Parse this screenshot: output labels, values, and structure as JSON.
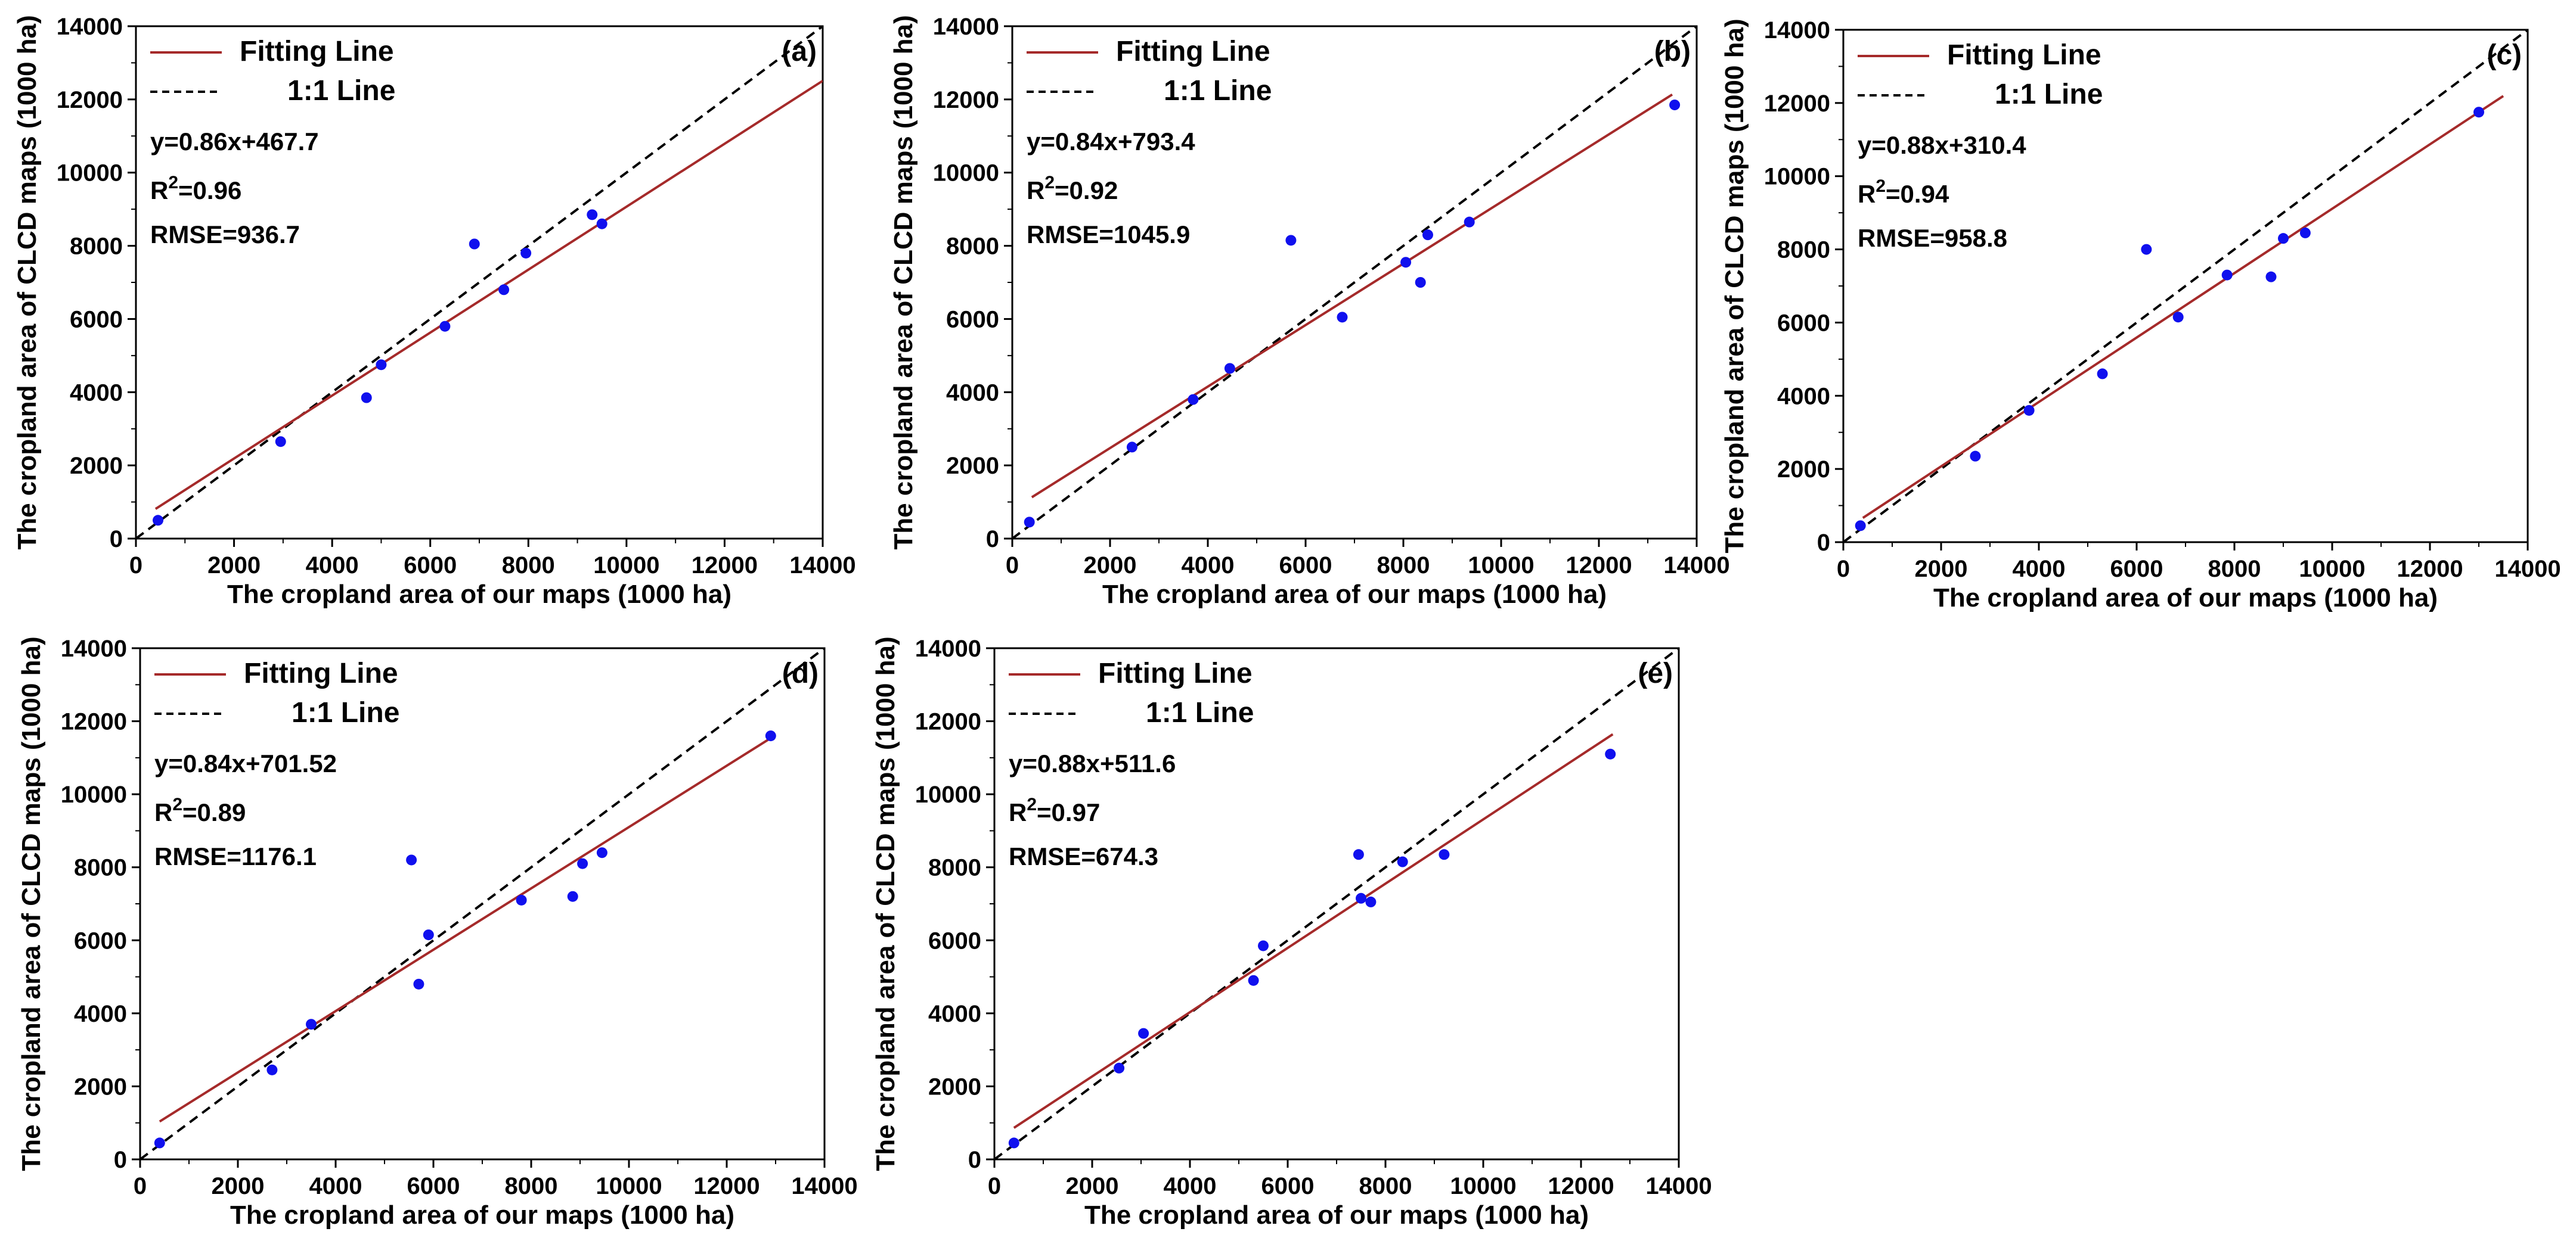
{
  "figure": {
    "colors": {
      "fit": "#a52a2a",
      "ref": "#000000",
      "point": "#1010ee",
      "axis": "#000000"
    }
  },
  "chart_data": [
    {
      "type": "scatter",
      "panel_label": "(a)",
      "xlabel": "The cropland area of our maps (1000 ha)",
      "ylabel": "The cropland area of CLCD maps (1000 ha)",
      "xlim": [
        0,
        14000
      ],
      "ylim": [
        0,
        14000
      ],
      "xticks": [
        "0",
        "2000",
        "4000",
        "6000",
        "8000",
        "10000",
        "12000",
        "14000"
      ],
      "yticks": [
        "0",
        "2000",
        "4000",
        "6000",
        "8000",
        "10000",
        "12000",
        "14000"
      ],
      "legend": {
        "fit_label": "Fitting Line",
        "ref_label": "1:1 Line"
      },
      "equation": "y=0.86x+467.7",
      "r2_label": "R",
      "r2_sup": "2",
      "r2_value": "=0.96",
      "rmse": "RMSE=936.7",
      "fit": {
        "slope": 0.86,
        "intercept": 467.7,
        "x_range": [
          400,
          14000
        ]
      },
      "reference": {
        "x_range": [
          0,
          14000
        ]
      },
      "points": [
        {
          "x": 450,
          "y": 500
        },
        {
          "x": 2950,
          "y": 2650
        },
        {
          "x": 4700,
          "y": 3850
        },
        {
          "x": 5000,
          "y": 4750
        },
        {
          "x": 6300,
          "y": 5800
        },
        {
          "x": 6900,
          "y": 8050
        },
        {
          "x": 7500,
          "y": 6800
        },
        {
          "x": 7950,
          "y": 7800
        },
        {
          "x": 9300,
          "y": 8850
        },
        {
          "x": 9500,
          "y": 8600
        }
      ]
    },
    {
      "type": "scatter",
      "panel_label": "(b)",
      "xlabel": "The cropland area of our maps (1000 ha)",
      "ylabel": "The cropland area of CLCD maps (1000 ha)",
      "xlim": [
        0,
        14000
      ],
      "ylim": [
        0,
        14000
      ],
      "xticks": [
        "0",
        "2000",
        "4000",
        "6000",
        "8000",
        "10000",
        "12000",
        "14000"
      ],
      "yticks": [
        "0",
        "2000",
        "4000",
        "6000",
        "8000",
        "10000",
        "12000",
        "14000"
      ],
      "legend": {
        "fit_label": "Fitting Line",
        "ref_label": "1:1 Line"
      },
      "equation": "y=0.84x+793.4",
      "r2_label": "R",
      "r2_sup": "2",
      "r2_value": "=0.92",
      "rmse": "RMSE=1045.9",
      "fit": {
        "slope": 0.84,
        "intercept": 793.4,
        "x_range": [
          400,
          13500
        ]
      },
      "reference": {
        "x_range": [
          0,
          14000
        ]
      },
      "points": [
        {
          "x": 350,
          "y": 450
        },
        {
          "x": 2450,
          "y": 2500
        },
        {
          "x": 3700,
          "y": 3800
        },
        {
          "x": 4450,
          "y": 4650
        },
        {
          "x": 5700,
          "y": 8150
        },
        {
          "x": 6750,
          "y": 6050
        },
        {
          "x": 8050,
          "y": 7550
        },
        {
          "x": 8350,
          "y": 7000
        },
        {
          "x": 8500,
          "y": 8300
        },
        {
          "x": 9350,
          "y": 8650
        },
        {
          "x": 13550,
          "y": 11850
        }
      ]
    },
    {
      "type": "scatter",
      "panel_label": "(c)",
      "xlabel": "The cropland area of our maps (1000 ha)",
      "ylabel": "The cropland area of CLCD maps (1000 ha)",
      "xlim": [
        0,
        14000
      ],
      "ylim": [
        0,
        14000
      ],
      "xticks": [
        "0",
        "2000",
        "4000",
        "6000",
        "8000",
        "10000",
        "12000",
        "14000"
      ],
      "yticks": [
        "0",
        "2000",
        "4000",
        "6000",
        "8000",
        "10000",
        "12000",
        "14000"
      ],
      "legend": {
        "fit_label": "Fitting Line",
        "ref_label": "1:1 Line"
      },
      "equation": "y=0.88x+310.4",
      "r2_label": "R",
      "r2_sup": "2",
      "r2_value": "=0.94",
      "rmse": "RMSE=958.8",
      "fit": {
        "slope": 0.88,
        "intercept": 310.4,
        "x_range": [
          400,
          13500
        ]
      },
      "reference": {
        "x_range": [
          0,
          14000
        ]
      },
      "points": [
        {
          "x": 350,
          "y": 450
        },
        {
          "x": 2700,
          "y": 2350
        },
        {
          "x": 3800,
          "y": 3600
        },
        {
          "x": 5300,
          "y": 4600
        },
        {
          "x": 6200,
          "y": 8000
        },
        {
          "x": 6850,
          "y": 6150
        },
        {
          "x": 7850,
          "y": 7300
        },
        {
          "x": 8750,
          "y": 7250
        },
        {
          "x": 9000,
          "y": 8300
        },
        {
          "x": 9450,
          "y": 8450
        },
        {
          "x": 13000,
          "y": 11750
        }
      ]
    },
    {
      "type": "scatter",
      "panel_label": "(d)",
      "xlabel": "The cropland area of our maps (1000 ha)",
      "ylabel": "The cropland area of CLCD maps (1000 ha)",
      "xlim": [
        0,
        14000
      ],
      "ylim": [
        0,
        14000
      ],
      "xticks": [
        "0",
        "2000",
        "4000",
        "6000",
        "8000",
        "10000",
        "12000",
        "14000"
      ],
      "yticks": [
        "0",
        "2000",
        "4000",
        "6000",
        "8000",
        "10000",
        "12000",
        "14000"
      ],
      "legend": {
        "fit_label": "Fitting Line",
        "ref_label": "1:1 Line"
      },
      "equation": "y=0.84x+701.52",
      "r2_label": "R",
      "r2_sup": "2",
      "r2_value": "=0.89",
      "rmse": "RMSE=1176.1",
      "fit": {
        "slope": 0.84,
        "intercept": 701.52,
        "x_range": [
          400,
          12950
        ]
      },
      "reference": {
        "x_range": [
          0,
          14000
        ]
      },
      "points": [
        {
          "x": 400,
          "y": 450
        },
        {
          "x": 2700,
          "y": 2450
        },
        {
          "x": 3500,
          "y": 3700
        },
        {
          "x": 5550,
          "y": 8200
        },
        {
          "x": 5700,
          "y": 4800
        },
        {
          "x": 5900,
          "y": 6150
        },
        {
          "x": 7800,
          "y": 7100
        },
        {
          "x": 8850,
          "y": 7200
        },
        {
          "x": 9050,
          "y": 8100
        },
        {
          "x": 9450,
          "y": 8400
        },
        {
          "x": 12900,
          "y": 11600
        }
      ]
    },
    {
      "type": "scatter",
      "panel_label": "(e)",
      "xlabel": "The cropland area of our maps (1000 ha)",
      "ylabel": "The cropland area of CLCD maps (1000 ha)",
      "xlim": [
        0,
        14000
      ],
      "ylim": [
        0,
        14000
      ],
      "xticks": [
        "0",
        "2000",
        "4000",
        "6000",
        "8000",
        "10000",
        "12000",
        "14000"
      ],
      "yticks": [
        "0",
        "2000",
        "4000",
        "6000",
        "8000",
        "10000",
        "12000",
        "14000"
      ],
      "legend": {
        "fit_label": "Fitting Line",
        "ref_label": "1:1 Line"
      },
      "equation": "y=0.88x+511.6",
      "r2_label": "R",
      "r2_sup": "2",
      "r2_value": "=0.97",
      "rmse": "RMSE=674.3",
      "fit": {
        "slope": 0.88,
        "intercept": 511.6,
        "x_range": [
          400,
          12650
        ]
      },
      "reference": {
        "x_range": [
          0,
          14000
        ]
      },
      "points": [
        {
          "x": 400,
          "y": 450
        },
        {
          "x": 2550,
          "y": 2500
        },
        {
          "x": 3050,
          "y": 3450
        },
        {
          "x": 5300,
          "y": 4900
        },
        {
          "x": 5500,
          "y": 5850
        },
        {
          "x": 7450,
          "y": 8350
        },
        {
          "x": 7500,
          "y": 7150
        },
        {
          "x": 7700,
          "y": 7050
        },
        {
          "x": 8350,
          "y": 8150
        },
        {
          "x": 9200,
          "y": 8350
        },
        {
          "x": 12600,
          "y": 11100
        }
      ]
    }
  ]
}
